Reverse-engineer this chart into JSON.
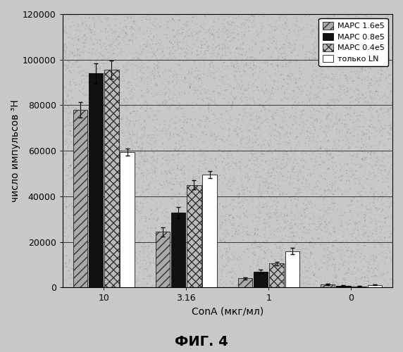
{
  "title": "ФИГ. 4",
  "xlabel": "ConA (мкг/мл)",
  "ylabel": "число импульсов ³H",
  "categories": [
    "10",
    "3.16",
    "1",
    "0"
  ],
  "series": [
    {
      "label": "МАРС 1.6e5",
      "values": [
        78000,
        24500,
        4000,
        1500
      ],
      "errors": [
        3500,
        2000,
        500,
        300
      ],
      "hatch": "///",
      "color": "#aaaaaa",
      "edgecolor": "#333333"
    },
    {
      "label": "МАРС 0.8e5",
      "values": [
        94000,
        33000,
        7000,
        800
      ],
      "errors": [
        4500,
        2500,
        700,
        150
      ],
      "hatch": "",
      "color": "#111111",
      "edgecolor": "#111111"
    },
    {
      "label": "МАРС 0.4e5",
      "values": [
        95500,
        45000,
        10500,
        500
      ],
      "errors": [
        4000,
        2000,
        800,
        100
      ],
      "hatch": "xxx",
      "color": "#bbbbbb",
      "edgecolor": "#333333"
    },
    {
      "label": "только LN",
      "values": [
        59500,
        49500,
        16000,
        1200
      ],
      "errors": [
        1500,
        1500,
        1500,
        200
      ],
      "hatch": "",
      "color": "#ffffff",
      "edgecolor": "#333333"
    }
  ],
  "ylim": [
    0,
    120000
  ],
  "yticks": [
    0,
    20000,
    40000,
    60000,
    80000,
    100000,
    120000
  ],
  "bar_width": 0.19,
  "background_color": "#c8c8c8",
  "plot_bg_color": "#c8c8c8",
  "noise_seed": 42
}
